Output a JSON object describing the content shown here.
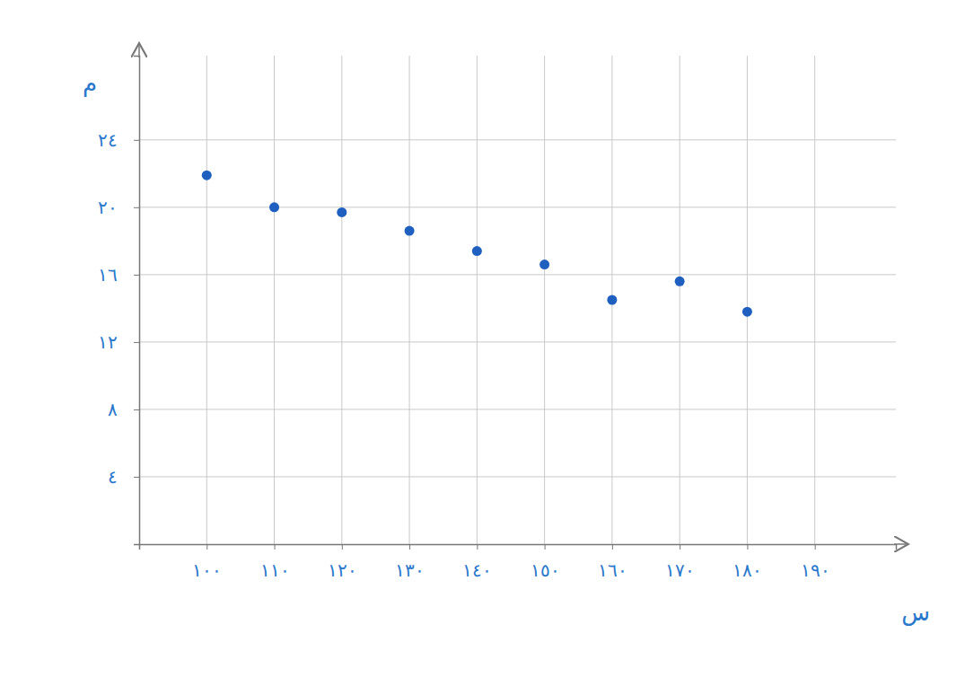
{
  "chart_data": {
    "type": "scatter",
    "x_label": "س",
    "y_label": "م",
    "x": [
      100,
      110,
      120,
      130,
      140,
      150,
      160,
      170,
      180
    ],
    "values": [
      21.9,
      20.0,
      19.7,
      18.6,
      17.4,
      16.6,
      14.5,
      15.6,
      13.8
    ],
    "color": "#1f5fbf",
    "marker": "circle",
    "xlim": [
      90,
      202
    ],
    "ylim": [
      0,
      29
    ],
    "xticks": [
      {
        "value": 100,
        "label": "١٠٠"
      },
      {
        "value": 110,
        "label": "١١٠"
      },
      {
        "value": 120,
        "label": "١٢٠"
      },
      {
        "value": 130,
        "label": "١٣٠"
      },
      {
        "value": 140,
        "label": "١٤٠"
      },
      {
        "value": 150,
        "label": "١٥٠"
      },
      {
        "value": 160,
        "label": "١٦٠"
      },
      {
        "value": 170,
        "label": "١٧٠"
      },
      {
        "value": 180,
        "label": "١٨٠"
      },
      {
        "value": 190,
        "label": "١٩٠"
      }
    ],
    "yticks": [
      {
        "value": 4,
        "label": "٤"
      },
      {
        "value": 8,
        "label": "٨"
      },
      {
        "value": 12,
        "label": "١٢"
      },
      {
        "value": 16,
        "label": "١٦"
      },
      {
        "value": 20,
        "label": "٢٠"
      },
      {
        "value": 24,
        "label": "٢٤"
      }
    ],
    "grid": true
  }
}
